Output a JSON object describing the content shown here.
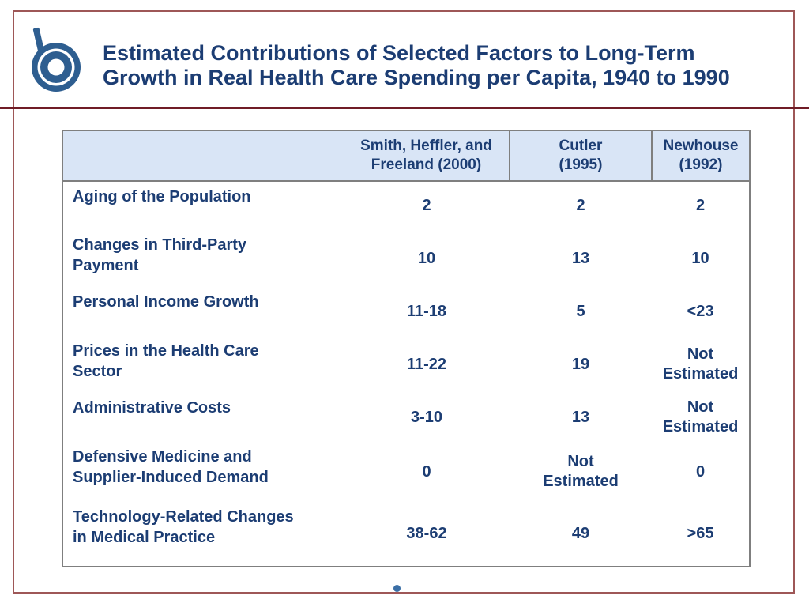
{
  "slide": {
    "title": "Estimated Contributions of Selected Factors to Long-Term\nGrowth in Real Health Care Spending per Capita, 1940 to 1990"
  },
  "colors": {
    "accent_blue": "#1C3D73",
    "logo_blue": "#2E5E90",
    "header_bg": "#D9E5F6",
    "slide_border": "#9E5757",
    "title_rule": "#701C26",
    "table_border": "#7F7F7F",
    "footer_dot": "#3B6FA6"
  },
  "table": {
    "header": {
      "factor_column": "",
      "columns": [
        "Smith, Heffler, and\nFreeland (2000)",
        "Cutler\n(1995)",
        "Newhouse\n(1992)"
      ]
    },
    "rows": [
      {
        "label": "Aging of the Population",
        "values": [
          "2",
          "2",
          "2"
        ]
      },
      {
        "label": "Changes in Third-Party\nPayment",
        "values": [
          "10",
          "13",
          "10"
        ]
      },
      {
        "label": "Personal Income Growth",
        "values": [
          "11-18",
          "5",
          "<23"
        ]
      },
      {
        "label": "Prices in the Health Care\nSector",
        "values": [
          "11-22",
          "19",
          "Not\nEstimated"
        ]
      },
      {
        "label": "Administrative Costs",
        "values": [
          "3-10",
          "13",
          "Not\nEstimated"
        ]
      },
      {
        "label": "Defensive Medicine and\nSupplier-Induced Demand",
        "values": [
          "0",
          "Not\nEstimated",
          "0"
        ]
      },
      {
        "label": "Technology-Related Changes\nin Medical Practice",
        "values": [
          "38-62",
          "49",
          ">65"
        ]
      }
    ]
  }
}
